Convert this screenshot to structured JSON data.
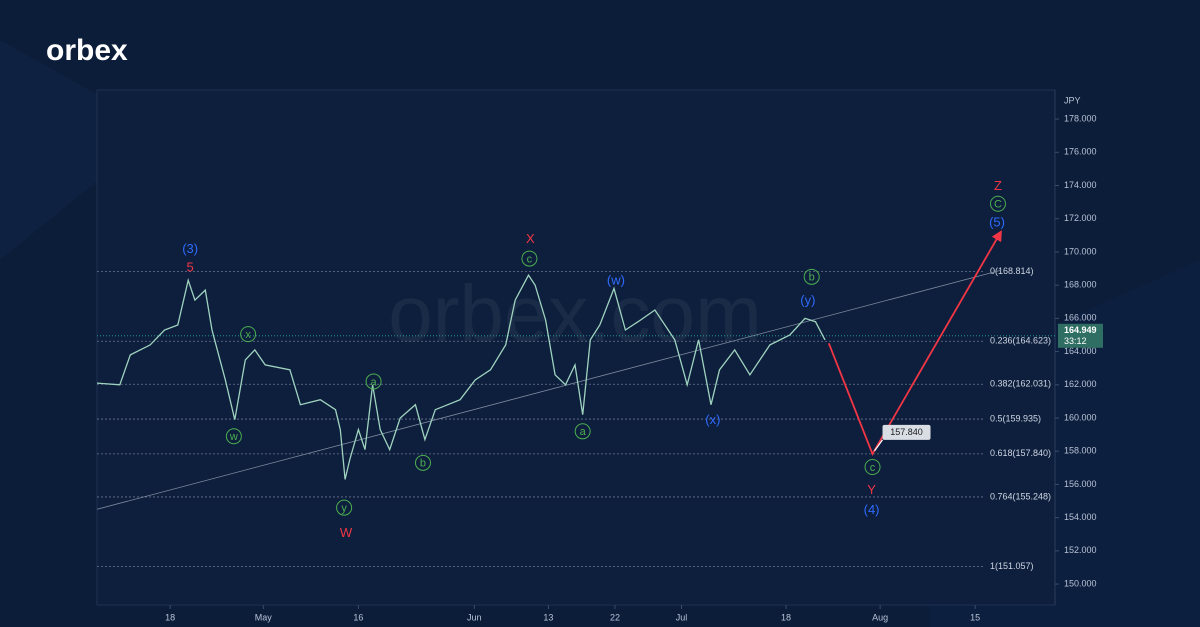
{
  "brand": "orbex",
  "watermark": "orbex.com",
  "chart_data": {
    "type": "line",
    "color": "#9fd3bf",
    "unit": "JPY",
    "x": [
      0,
      2.4,
      3.5,
      5.6,
      7.1,
      8.5,
      9.6,
      10.3,
      11.4,
      12.1,
      13.5,
      14.5,
      15.6,
      16.6,
      17.7,
      20.3,
      21.4,
      23.5,
      25.1,
      25.6,
      26.1,
      26.6,
      27.5,
      28.2,
      29.0,
      29.8,
      30.8,
      31.9,
      33.5,
      34.5,
      35.6,
      38.2,
      39.8,
      41.4,
      43.0,
      44.0,
      45.4,
      46.1,
      47.2,
      48.2,
      49.3,
      50.3,
      51.1,
      51.9,
      52.9,
      54.4,
      55.6,
      57.2,
      58.7,
      60.8,
      62.1,
      63.3,
      64.6,
      65.5,
      67.1,
      68.7,
      70.8,
      72.9,
      74.5,
      75.6,
      76.6
    ],
    "values": [
      162.1,
      162.0,
      163.8,
      164.4,
      165.3,
      165.6,
      168.3,
      167.1,
      167.7,
      165.3,
      162.3,
      159.9,
      163.5,
      164.1,
      163.2,
      162.9,
      160.8,
      161.1,
      160.5,
      159.3,
      156.3,
      157.5,
      159.3,
      158.1,
      162.0,
      159.3,
      158.1,
      160.0,
      160.8,
      158.7,
      160.5,
      161.1,
      162.3,
      162.9,
      164.4,
      167.1,
      168.6,
      168.0,
      165.9,
      162.6,
      162.0,
      163.2,
      160.2,
      164.7,
      165.6,
      167.8,
      165.3,
      165.9,
      166.5,
      164.7,
      162.0,
      164.7,
      160.8,
      162.9,
      164.1,
      162.6,
      164.4,
      165.0,
      166.0,
      165.8,
      164.7
    ],
    "xlim": [
      0,
      100.8
    ],
    "xticks": [
      {
        "value": 7.7,
        "label": "18"
      },
      {
        "value": 17.5,
        "label": "May"
      },
      {
        "value": 27.5,
        "label": "16"
      },
      {
        "value": 39.7,
        "label": "Jun"
      },
      {
        "value": 47.5,
        "label": "13"
      },
      {
        "value": 54.5,
        "label": "22"
      },
      {
        "value": 61.5,
        "label": "Jul"
      },
      {
        "value": 72.5,
        "label": "18"
      },
      {
        "value": 82.4,
        "label": "Aug"
      },
      {
        "value": 92.4,
        "label": "15"
      }
    ],
    "ylim": [
      148.74,
      179.75
    ],
    "yticks": [
      {
        "value": 150,
        "label": "150.000"
      },
      {
        "value": 152,
        "label": "152.000"
      },
      {
        "value": 154,
        "label": "154.000"
      },
      {
        "value": 156,
        "label": "156.000"
      },
      {
        "value": 158,
        "label": "158.000"
      },
      {
        "value": 160,
        "label": "160.000"
      },
      {
        "value": 162,
        "label": "162.000"
      },
      {
        "value": 164,
        "label": "164.000"
      },
      {
        "value": 166,
        "label": "166.000"
      },
      {
        "value": 168,
        "label": "168.000"
      },
      {
        "value": 170,
        "label": "170.000"
      },
      {
        "value": 172,
        "label": "172.000"
      },
      {
        "value": 174,
        "label": "174.000"
      },
      {
        "value": 176,
        "label": "176.000"
      },
      {
        "value": 178,
        "label": "178.000"
      }
    ],
    "fib_levels": [
      {
        "value": 168.814,
        "label": "0(168.814)"
      },
      {
        "value": 164.623,
        "label": "0.236(164.623)"
      },
      {
        "value": 162.031,
        "label": "0.382(162.031)"
      },
      {
        "value": 159.935,
        "label": "0.5(159.935)"
      },
      {
        "value": 157.84,
        "label": "0.618(157.840)"
      },
      {
        "value": 155.248,
        "label": "0.764(155.248)"
      },
      {
        "value": 151.057,
        "label": "1(151.057)"
      }
    ],
    "trendline": {
      "color": "#7f8aa0",
      "x": [
        0,
        95.1
      ],
      "values": [
        154.5,
        168.9
      ]
    },
    "projection": {
      "color": "#f23645",
      "x": [
        77.0,
        81.6,
        95.1
      ],
      "values": [
        164.5,
        157.84,
        171.2
      ]
    },
    "target": {
      "value": 157.84,
      "label": "157.840"
    },
    "last_price": {
      "value": 164.949,
      "label": "164.949",
      "countdown": "33:12"
    },
    "waves": [
      {
        "text": "(3)",
        "color": "#2f6bff",
        "x": 9.8,
        "y": 170.2,
        "circled": false
      },
      {
        "text": "5",
        "color": "#f23645",
        "x": 9.8,
        "y": 169.1,
        "circled": false
      },
      {
        "text": "x",
        "color": "#4caf50",
        "x": 15.9,
        "y": 165.05,
        "circled": true
      },
      {
        "text": "w",
        "color": "#4caf50",
        "x": 14.4,
        "y": 158.9,
        "circled": true
      },
      {
        "text": "y",
        "color": "#4caf50",
        "x": 26.0,
        "y": 154.6,
        "circled": true
      },
      {
        "text": "W",
        "color": "#f23645",
        "x": 26.2,
        "y": 153.1,
        "circled": false
      },
      {
        "text": "a",
        "color": "#4caf50",
        "x": 29.1,
        "y": 162.2,
        "circled": true
      },
      {
        "text": "b",
        "color": "#4caf50",
        "x": 34.3,
        "y": 157.3,
        "circled": true
      },
      {
        "text": "X",
        "color": "#f23645",
        "x": 45.6,
        "y": 170.8,
        "circled": false
      },
      {
        "text": "c",
        "color": "#4caf50",
        "x": 45.5,
        "y": 169.6,
        "circled": true
      },
      {
        "text": "a",
        "color": "#4caf50",
        "x": 51.1,
        "y": 159.2,
        "circled": true
      },
      {
        "text": "(w)",
        "color": "#2f6bff",
        "x": 54.6,
        "y": 168.3,
        "circled": false
      },
      {
        "text": "(x)",
        "color": "#2f6bff",
        "x": 64.8,
        "y": 159.9,
        "circled": false
      },
      {
        "text": "b",
        "color": "#4caf50",
        "x": 75.2,
        "y": 168.5,
        "circled": true
      },
      {
        "text": "(y)",
        "color": "#2f6bff",
        "x": 74.8,
        "y": 167.1,
        "circled": false
      },
      {
        "text": "c",
        "color": "#4caf50",
        "x": 81.6,
        "y": 157.05,
        "circled": true
      },
      {
        "text": "Y",
        "color": "#f23645",
        "x": 81.5,
        "y": 155.7,
        "circled": false
      },
      {
        "text": "(4)",
        "color": "#2f6bff",
        "x": 81.5,
        "y": 154.5,
        "circled": false
      },
      {
        "text": "Z",
        "color": "#f23645",
        "x": 94.8,
        "y": 174.0,
        "circled": false
      },
      {
        "text": "C",
        "color": "#4caf50",
        "x": 94.8,
        "y": 172.9,
        "circled": true
      },
      {
        "text": "(5)",
        "color": "#2f6bff",
        "x": 94.7,
        "y": 171.8,
        "circled": false
      }
    ]
  }
}
